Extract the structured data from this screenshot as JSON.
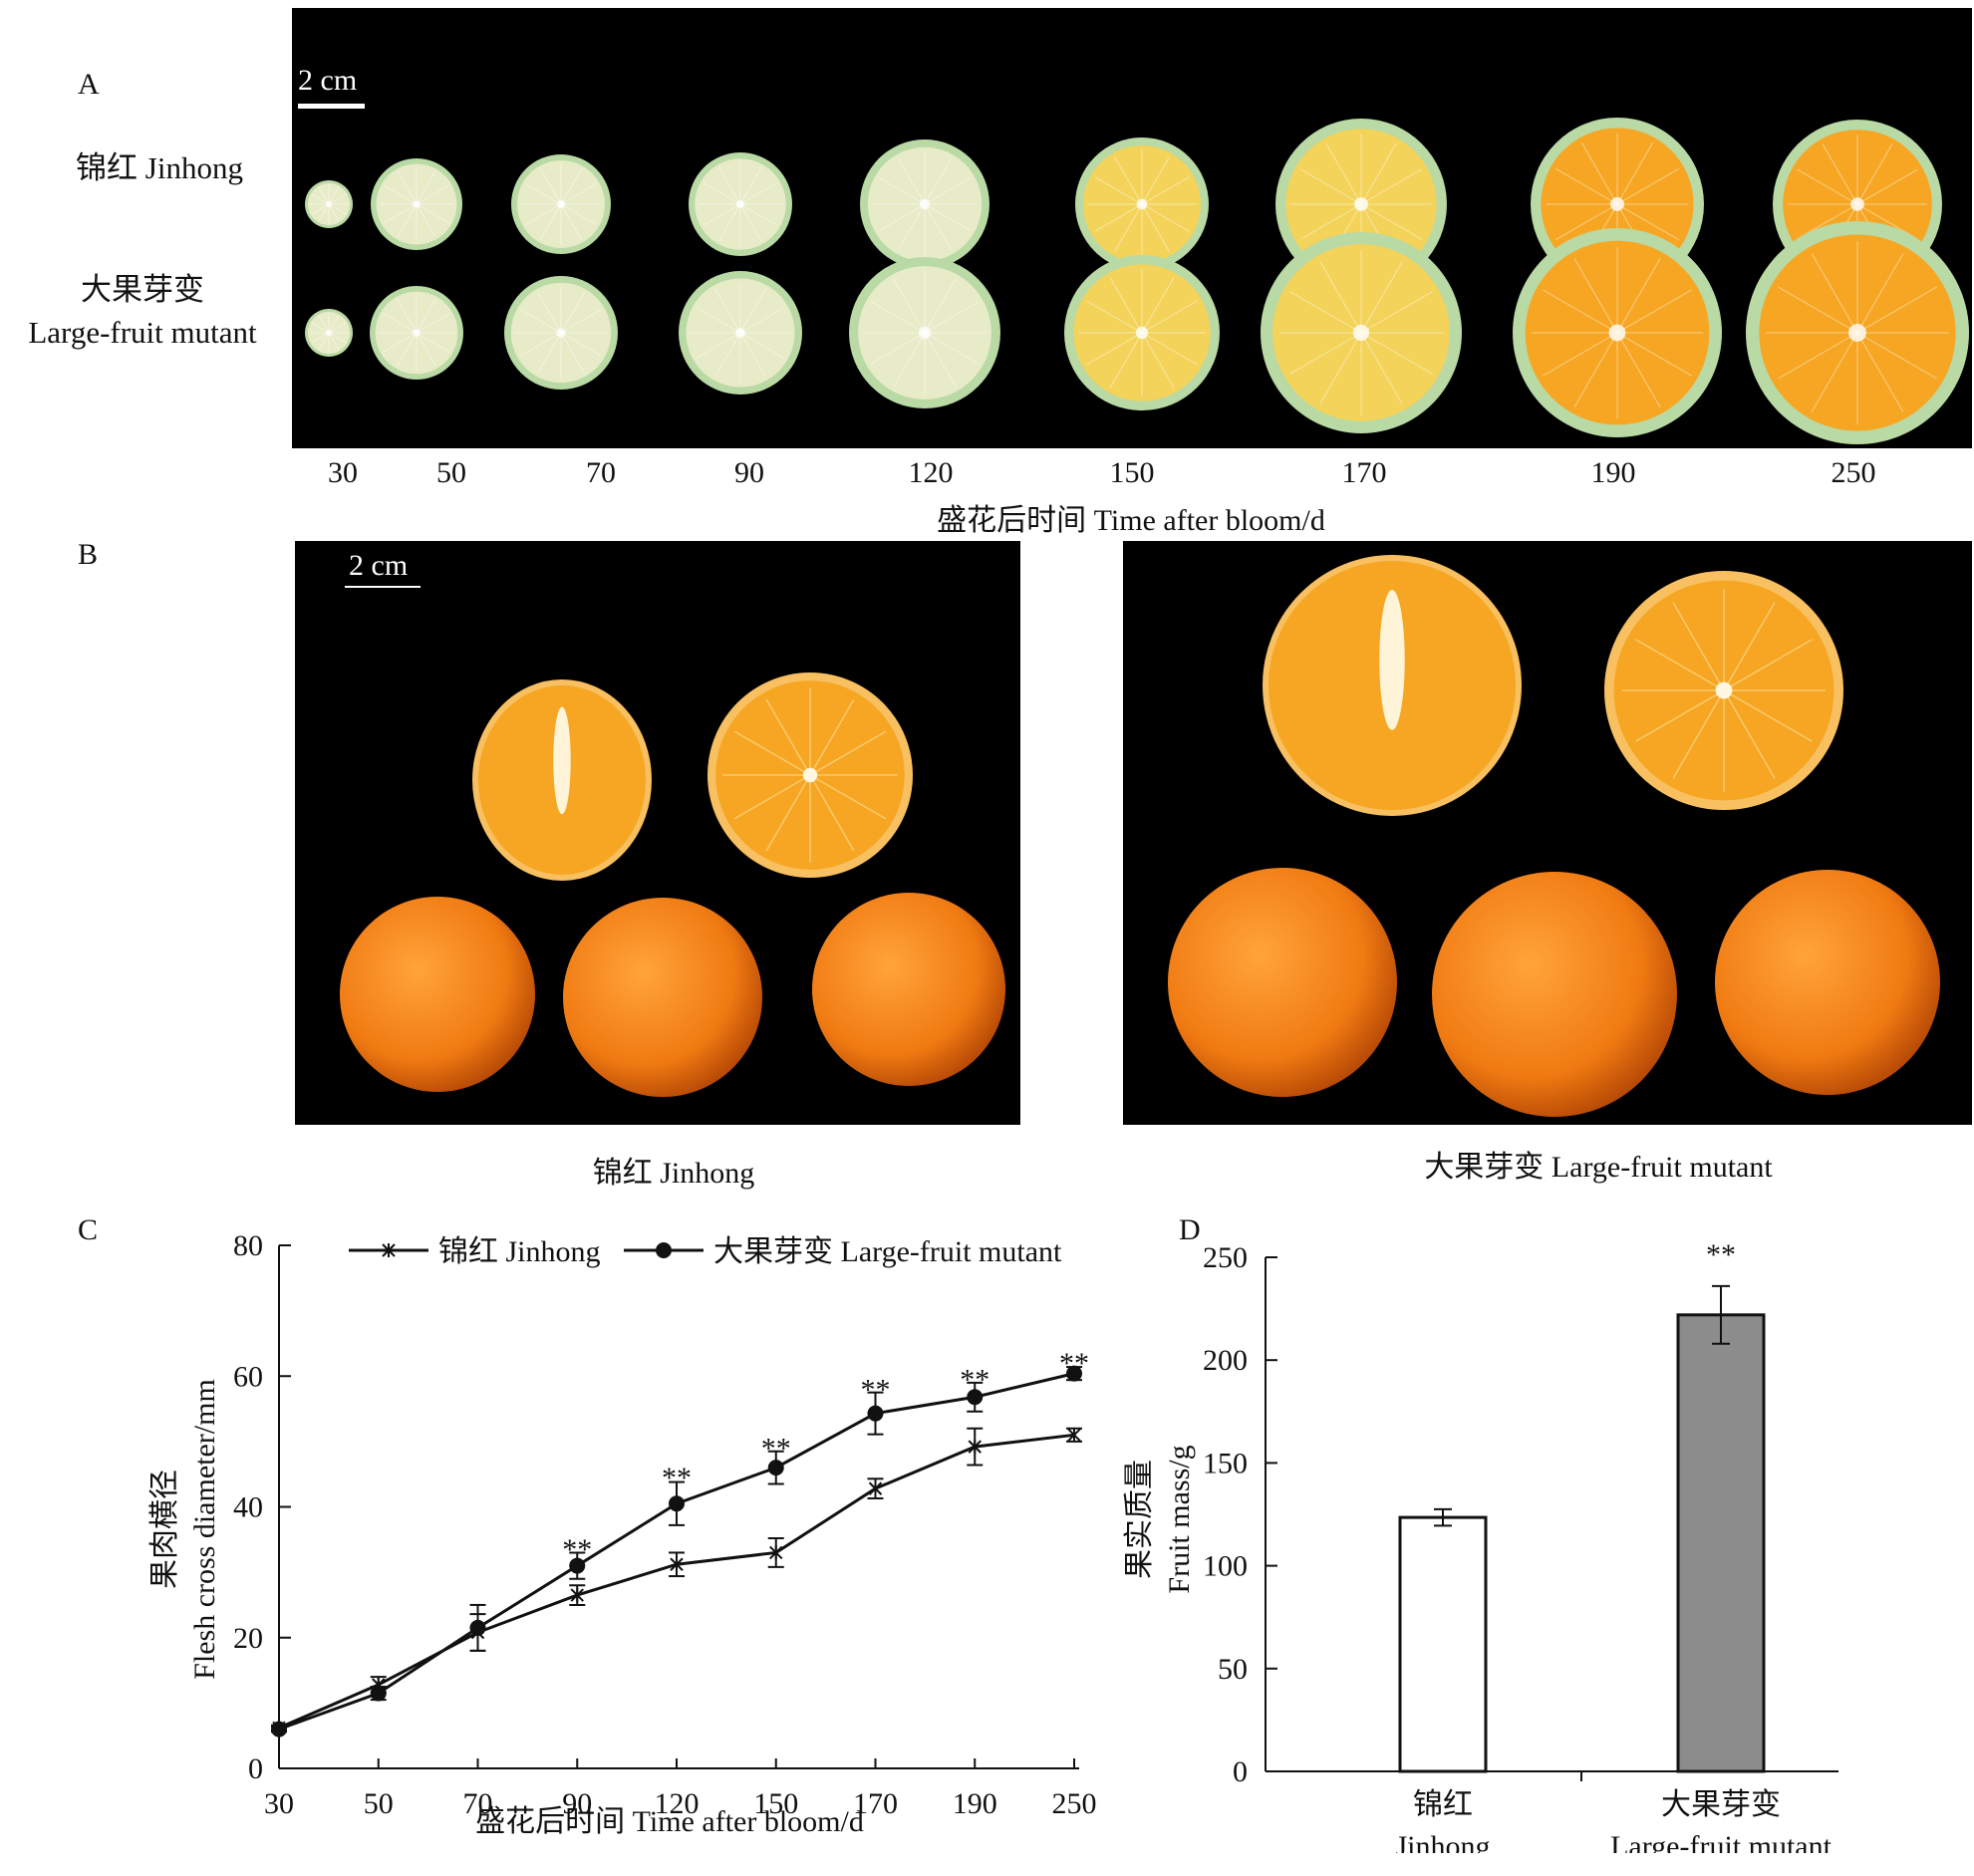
{
  "panel_a": {
    "label": "A",
    "scale": "2 cm",
    "row1_label": "锦红 Jinhong",
    "row2_label_cn": "大果芽变",
    "row2_label_en": "Large-fruit mutant",
    "days": [
      "30",
      "50",
      "70",
      "90",
      "120",
      "150",
      "170",
      "190",
      "250"
    ],
    "axis_title": "盛花后时间 Time after bloom/d"
  },
  "panel_b": {
    "label": "B",
    "scale": "2 cm",
    "left_caption": "锦红 Jinhong",
    "right_caption": "大果芽变 Large-fruit mutant"
  },
  "panel_c": {
    "label": "C"
  },
  "panel_d": {
    "label": "D"
  },
  "colors": {
    "rind_green": "#b9d9a5",
    "flesh_pale": "#e8ebc8",
    "flesh_orange": "#f6a623",
    "peel_orange": "#f07a12",
    "bar_mutant": "#8c8c8c"
  },
  "chart_data": [
    {
      "type": "line",
      "xlabel": "盛花后时间 Time after bloom/d",
      "ylabel_cn": "果肉横径",
      "ylabel_en": "Flesh cross diameter/mm",
      "categories": [
        "30",
        "50",
        "70",
        "90",
        "120",
        "150",
        "170",
        "190",
        "250"
      ],
      "ylim": [
        0,
        80
      ],
      "yticks": [
        0,
        20,
        40,
        60,
        80
      ],
      "legend": "top",
      "series": [
        {
          "name": "锦红 Jinhong",
          "marker": "star",
          "values": [
            6.2,
            12.8,
            20.8,
            26.5,
            31.2,
            33.0,
            42.8,
            49.2,
            51.0
          ],
          "errors": [
            0.4,
            1.2,
            2.8,
            1.5,
            1.8,
            2.2,
            1.5,
            2.8,
            1.0
          ]
        },
        {
          "name": "大果芽变 Large-fruit mutant",
          "marker": "circle",
          "values": [
            6.0,
            11.5,
            21.5,
            31.0,
            40.5,
            46.0,
            54.3,
            56.8,
            60.4
          ],
          "errors": [
            0.4,
            1.0,
            3.5,
            2.0,
            3.3,
            2.5,
            3.2,
            2.2,
            1.0
          ]
        }
      ],
      "annotations": [
        {
          "x": "90",
          "text": "**",
          "y": 33.5
        },
        {
          "x": "120",
          "text": "**",
          "y": 44.5
        },
        {
          "x": "150",
          "text": "**",
          "y": 49.0
        },
        {
          "x": "170",
          "text": "**",
          "y": 58.0
        },
        {
          "x": "190",
          "text": "**",
          "y": 59.5
        },
        {
          "x": "250",
          "text": "**",
          "y": 62.0
        }
      ]
    },
    {
      "type": "bar",
      "ylabel_cn": "果实质量",
      "ylabel_en": "Fruit mass/g",
      "categories": [
        {
          "cn": "锦红",
          "en": "Jinhong"
        },
        {
          "cn": "大果芽变",
          "en": "Large-fruit mutant"
        }
      ],
      "values": [
        123.5,
        222.0
      ],
      "errors": [
        4.0,
        14.0
      ],
      "fills": [
        "#ffffff",
        "#8c8c8c"
      ],
      "ylim": [
        0,
        250
      ],
      "yticks": [
        0,
        50,
        100,
        150,
        200,
        250
      ],
      "annotations": [
        {
          "category": 1,
          "text": "**"
        }
      ]
    }
  ]
}
